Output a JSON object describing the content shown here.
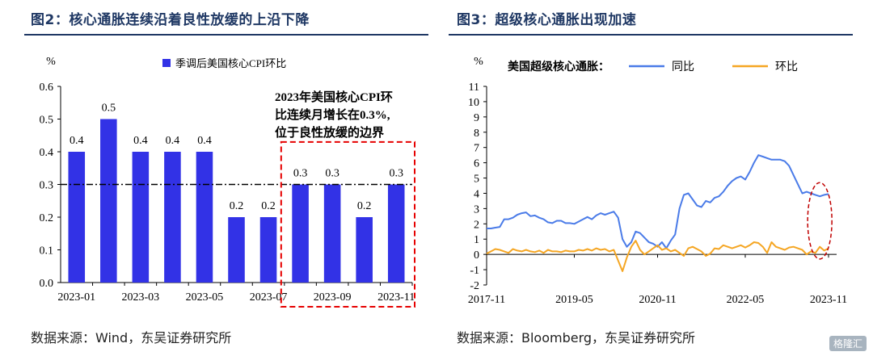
{
  "left": {
    "title": "图2：核心通胀连续沿着良性放缓的上沿下降",
    "source": "数据来源：Wind，东吴证券研究所",
    "chart_data": {
      "type": "bar",
      "unit_label": "%",
      "legend": "季调后美国核心CPI环比",
      "categories": [
        "2023-01",
        "2023-02",
        "2023-03",
        "2023-04",
        "2023-05",
        "2023-06",
        "2023-07",
        "2023-08",
        "2023-09",
        "2023-10",
        "2023-11"
      ],
      "values": [
        0.4,
        0.5,
        0.4,
        0.4,
        0.4,
        0.2,
        0.2,
        0.3,
        0.3,
        0.2,
        0.3
      ],
      "value_labels": [
        "0.4",
        "0.5",
        "0.4",
        "0.4",
        "0.4",
        "0.2",
        "0.2",
        "0.3",
        "0.3",
        "0.2",
        "0.3"
      ],
      "x_tick_labels": [
        {
          "index": 0,
          "text": "2023-01"
        },
        {
          "index": 2,
          "text": "2023-03"
        },
        {
          "index": 4,
          "text": "2023-05"
        },
        {
          "index": 6,
          "text": "2023-07"
        },
        {
          "index": 8,
          "text": "2023-09"
        },
        {
          "index": 10,
          "text": "2023-11"
        }
      ],
      "y_ticks": [
        "0.0",
        "0.1",
        "0.2",
        "0.3",
        "0.4",
        "0.5",
        "0.6"
      ],
      "ylim": [
        0,
        0.6
      ],
      "reference_line": 0.3,
      "highlight_range": [
        "2023-08",
        "2023-11"
      ],
      "annotation": [
        "2023年美国核心CPI环",
        "比连续月增长在0.3%,",
        "位于良性放缓的边界"
      ],
      "colors": {
        "bar": "#3232e6",
        "highlight_box": "#e60000",
        "axis": "#000000"
      }
    }
  },
  "right": {
    "title": "图3：超级核心通胀出现加速",
    "source": "数据来源：Bloomberg，东吴证券研究所",
    "chart_data": {
      "type": "line",
      "unit_label": "%",
      "legend_title": "美国超级核心通胀：",
      "series": [
        {
          "name": "同比",
          "color": "#4a7be8",
          "values": [
            1.7,
            1.7,
            1.75,
            1.8,
            2.3,
            2.3,
            2.4,
            2.6,
            2.7,
            2.75,
            2.5,
            2.55,
            2.4,
            2.3,
            2.1,
            2.05,
            2.2,
            2.2,
            2.05,
            2.05,
            2.0,
            2.15,
            2.3,
            2.45,
            2.3,
            2.55,
            2.7,
            2.6,
            2.7,
            2.8,
            2.4,
            1.0,
            0.5,
            0.8,
            1.5,
            1.4,
            1.1,
            0.8,
            0.7,
            0.5,
            0.8,
            0.4,
            0.9,
            1.3,
            3.0,
            3.9,
            4.0,
            3.6,
            3.2,
            3.1,
            3.5,
            3.4,
            3.7,
            3.8,
            4.1,
            4.5,
            4.8,
            5.0,
            5.1,
            4.9,
            5.4,
            6.0,
            6.5,
            6.4,
            6.3,
            6.2,
            6.2,
            6.2,
            6.1,
            5.8,
            5.2,
            4.6,
            4.0,
            4.1,
            4.0,
            3.9,
            3.8,
            3.9,
            3.95
          ]
        },
        {
          "name": "环比",
          "color": "#f5a623",
          "values": [
            0.05,
            0.2,
            0.35,
            0.3,
            0.2,
            0.1,
            0.35,
            0.25,
            0.2,
            0.3,
            0.2,
            0.15,
            0.25,
            0.1,
            0.3,
            0.2,
            0.2,
            0.15,
            0.25,
            0.2,
            0.2,
            0.3,
            0.25,
            0.35,
            0.25,
            0.4,
            0.3,
            0.35,
            0.2,
            0.3,
            -0.4,
            -1.1,
            -0.2,
            0.5,
            0.9,
            0.3,
            0.0,
            0.2,
            0.4,
            0.6,
            0.3,
            0.4,
            0.2,
            0.3,
            0.1,
            -0.1,
            0.4,
            0.5,
            0.35,
            0.2,
            -0.1,
            0.05,
            0.4,
            0.35,
            0.6,
            0.5,
            0.4,
            0.5,
            0.6,
            0.45,
            0.6,
            0.8,
            0.75,
            0.5,
            0.1,
            0.8,
            0.5,
            0.4,
            0.3,
            0.45,
            0.5,
            0.4,
            0.3,
            0.0,
            0.2,
            0.1,
            0.5,
            0.25,
            0.4
          ]
        }
      ],
      "x_tick_labels": [
        "2017-11",
        "2019-05",
        "2020-11",
        "2022-05",
        "2023-11"
      ],
      "y_ticks": [
        "-2",
        "-1",
        "0",
        "1",
        "2",
        "3",
        "4",
        "5",
        "6",
        "7",
        "8",
        "9",
        "10",
        "11"
      ],
      "ylim": [
        -2,
        11
      ],
      "highlight": "recent months (dashed ellipse)",
      "colors": {
        "ellipse": "#c00000",
        "axis": "#000000"
      }
    }
  },
  "watermark": "格隆汇"
}
